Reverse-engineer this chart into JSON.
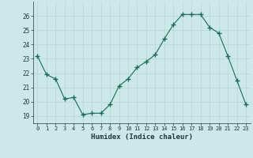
{
  "x": [
    0,
    1,
    2,
    3,
    4,
    5,
    6,
    7,
    8,
    9,
    10,
    11,
    12,
    13,
    14,
    15,
    16,
    17,
    18,
    19,
    20,
    21,
    22,
    23
  ],
  "y": [
    23.2,
    21.9,
    21.6,
    20.2,
    20.3,
    19.1,
    19.2,
    19.2,
    19.8,
    21.1,
    21.6,
    22.4,
    22.8,
    23.3,
    24.4,
    25.4,
    26.1,
    26.1,
    26.1,
    25.2,
    24.8,
    23.2,
    21.5,
    19.8
  ],
  "xlabel": "Humidex (Indice chaleur)",
  "ylabel": "",
  "xlim": [
    -0.5,
    23.5
  ],
  "ylim": [
    18.5,
    27.0
  ],
  "yticks": [
    19,
    20,
    21,
    22,
    23,
    24,
    25,
    26
  ],
  "xticks": [
    0,
    1,
    2,
    3,
    4,
    5,
    6,
    7,
    8,
    9,
    10,
    11,
    12,
    13,
    14,
    15,
    16,
    17,
    18,
    19,
    20,
    21,
    22,
    23
  ],
  "line_color": "#1a6b5a",
  "bg_color": "#cce8e8",
  "grid_color": "#b8d4d4",
  "marker": "+"
}
